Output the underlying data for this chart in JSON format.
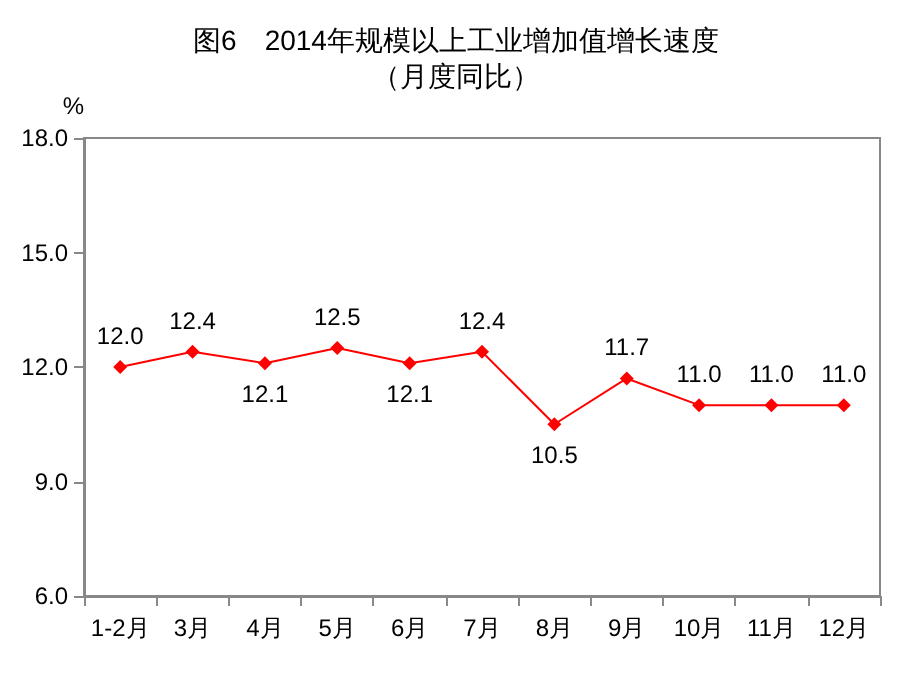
{
  "chart_data": {
    "type": "line",
    "title": "图6　2014年规模以上工业增加值增长速度",
    "subtitle": "（月度同比）",
    "ylabel": "%",
    "categories": [
      "1-2月",
      "3月",
      "4月",
      "5月",
      "6月",
      "7月",
      "8月",
      "9月",
      "10月",
      "11月",
      "12月"
    ],
    "series": [
      {
        "color": "#ff0000",
        "values": [
          12.0,
          12.4,
          12.1,
          12.5,
          12.1,
          12.4,
          10.5,
          11.7,
          11.0,
          11.0,
          11.0
        ],
        "value_labels": [
          "12.0",
          "12.4",
          "12.1",
          "12.5",
          "12.1",
          "12.4",
          "10.5",
          "11.7",
          "11.0",
          "11.0",
          "11.0"
        ]
      }
    ],
    "ylim": [
      6,
      18
    ],
    "yticks": [
      {
        "value": 6,
        "label": "6.0"
      },
      {
        "value": 9,
        "label": "9.0"
      },
      {
        "value": 12,
        "label": "12.0"
      },
      {
        "value": 15,
        "label": "15.0"
      },
      {
        "value": 18,
        "label": "18.0"
      }
    ],
    "grid": false,
    "marker": "diamond",
    "line_style": "solid"
  }
}
